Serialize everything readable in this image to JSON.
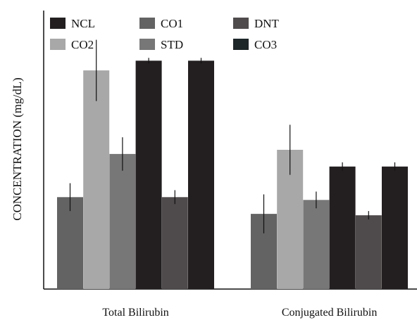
{
  "chart_data": {
    "type": "bar",
    "title": "",
    "xlabel": "",
    "ylabel": "CONCENTRATION (mg/dL)",
    "ylim": [
      0,
      1
    ],
    "grid": false,
    "legend_position": "top",
    "categories": [
      "Total Bilirubin",
      "Conjugated Bilirubin"
    ],
    "series": [
      {
        "name": "NCL",
        "color": "#231f20",
        "values": [
          0.82,
          0.44
        ],
        "errors": [
          0.01,
          0.015
        ]
      },
      {
        "name": "CO1",
        "color": "#636363",
        "values": [
          0.33,
          0.27
        ],
        "errors": [
          0.05,
          0.07
        ]
      },
      {
        "name": "DNT",
        "color": "#4f4a4b",
        "values": [
          0.33,
          0.265
        ],
        "errors": [
          0.025,
          0.015
        ]
      },
      {
        "name": "CO2",
        "color": "#a8a8a8",
        "values": [
          0.785,
          0.5
        ],
        "errors": [
          0.11,
          0.09
        ]
      },
      {
        "name": "STD",
        "color": "#777777",
        "values": [
          0.485,
          0.32
        ],
        "errors": [
          0.06,
          0.03
        ]
      },
      {
        "name": "CO3",
        "color": "#1d2628",
        "values": [
          0.78,
          0.44
        ],
        "errors": [
          0.005,
          0.01
        ]
      }
    ],
    "bar_order": [
      "CO1",
      "CO2",
      "STD",
      "NCL",
      "DNT",
      "NCL"
    ]
  }
}
